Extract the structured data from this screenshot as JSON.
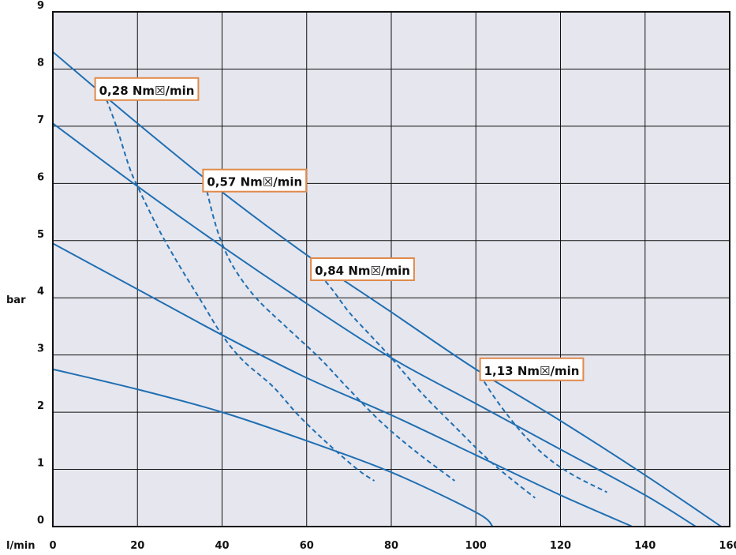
{
  "chart_data": {
    "type": "line",
    "title": "",
    "xlabel": "l/min",
    "ylabel": "bar",
    "xlim": [
      0,
      160
    ],
    "ylim": [
      0,
      9
    ],
    "x_ticks": [
      0,
      20,
      40,
      60,
      80,
      100,
      120,
      140,
      160
    ],
    "y_ticks": [
      0,
      1,
      2,
      3,
      4,
      5,
      6,
      7,
      8,
      9
    ],
    "grid": true,
    "background_color": "#e6e6ee",
    "line_color": "#1f6fb2",
    "callout_border_color": "#e08a4a",
    "series": [
      {
        "style": "solid",
        "x": [
          0,
          20,
          40,
          60,
          80,
          100,
          104
        ],
        "y": [
          2.75,
          2.4,
          2.0,
          1.5,
          0.95,
          0.25,
          0
        ]
      },
      {
        "style": "solid",
        "x": [
          0,
          20,
          40,
          60,
          80,
          100,
          120,
          137
        ],
        "y": [
          4.95,
          4.15,
          3.35,
          2.6,
          1.95,
          1.25,
          0.55,
          0
        ]
      },
      {
        "style": "solid",
        "x": [
          0,
          20,
          40,
          60,
          80,
          100,
          120,
          140,
          152
        ],
        "y": [
          7.05,
          5.95,
          4.9,
          3.9,
          2.95,
          2.15,
          1.35,
          0.55,
          0
        ]
      },
      {
        "style": "solid",
        "x": [
          0,
          20,
          40,
          60,
          80,
          100,
          120,
          140,
          158
        ],
        "y": [
          8.3,
          7.05,
          5.85,
          4.75,
          3.75,
          2.75,
          1.85,
          0.9,
          0
        ]
      },
      {
        "style": "dashed",
        "name": "0,28 Nm☒/min",
        "x": [
          12,
          15,
          18,
          20,
          25,
          30,
          35,
          40,
          45,
          52,
          58,
          65,
          72,
          76
        ],
        "y": [
          7.6,
          7.0,
          6.3,
          5.95,
          5.2,
          4.55,
          3.95,
          3.35,
          2.9,
          2.45,
          1.95,
          1.45,
          1.0,
          0.8
        ]
      },
      {
        "style": "dashed",
        "name": "0,57 Nm☒/min",
        "x": [
          36,
          38,
          40,
          43,
          48,
          55,
          63,
          70,
          78,
          86,
          95
        ],
        "y": [
          6.0,
          5.4,
          4.95,
          4.5,
          4.0,
          3.5,
          2.95,
          2.4,
          1.8,
          1.3,
          0.8
        ]
      },
      {
        "style": "dashed",
        "name": "0,84 Nm☒/min",
        "x": [
          62,
          66,
          70,
          75,
          80,
          87,
          95,
          104,
          114
        ],
        "y": [
          4.5,
          4.15,
          3.75,
          3.35,
          2.95,
          2.35,
          1.75,
          1.1,
          0.5
        ]
      },
      {
        "style": "dashed",
        "name": "1,13 Nm☒/min",
        "x": [
          101,
          104,
          108,
          112,
          117,
          123,
          131
        ],
        "y": [
          2.65,
          2.3,
          1.9,
          1.55,
          1.2,
          0.9,
          0.6
        ]
      }
    ],
    "callouts": [
      {
        "text": "0,28 Nm☒/min",
        "x": 10,
        "y": 7.65
      },
      {
        "text": "0,57 Nm☒/min",
        "x": 35.5,
        "y": 6.05
      },
      {
        "text": "0,84 Nm☒/min",
        "x": 61,
        "y": 4.5
      },
      {
        "text": "1,13 Nm☒/min",
        "x": 101,
        "y": 2.75
      }
    ]
  }
}
